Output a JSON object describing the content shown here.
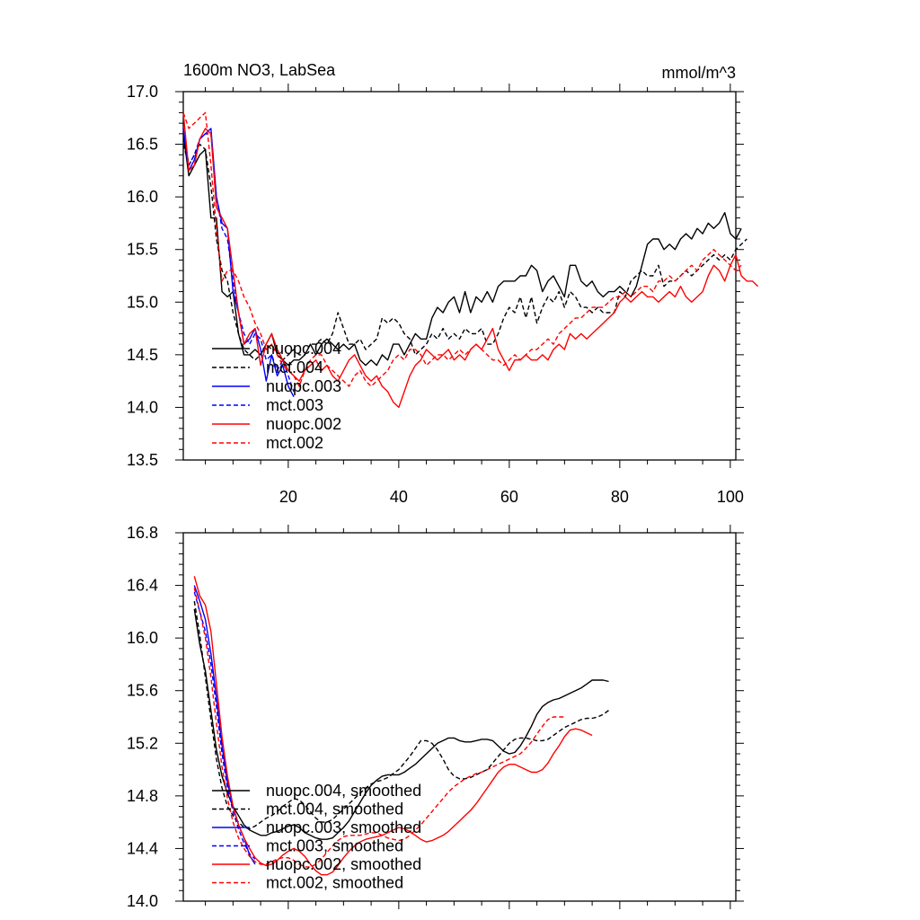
{
  "figure": {
    "title": "1600m NO3, LabSea",
    "units": "mmol/m^3"
  },
  "chart_data": [
    {
      "type": "line",
      "title": "1600m NO3, LabSea",
      "units_label": "mmol/m^3",
      "xlim": [
        1,
        101
      ],
      "ylim": [
        13.5,
        17.0
      ],
      "x_ticks": [
        20,
        40,
        60,
        80,
        100
      ],
      "x_tick_labels": [
        "20",
        "40",
        "60",
        "80",
        "100"
      ],
      "y_ticks": [
        13.5,
        14.0,
        14.5,
        15.0,
        15.5,
        16.0,
        16.5,
        17.0
      ],
      "y_tick_labels": [
        "13.5",
        "14.0",
        "14.5",
        "15.0",
        "15.5",
        "16.0",
        "16.5",
        "17.0"
      ],
      "legend_position": "lower-left",
      "series": [
        {
          "name": "nuopc.004",
          "color": "#000000",
          "dash": "solid",
          "x_start": 1,
          "values": [
            16.6,
            16.2,
            16.3,
            16.4,
            16.45,
            15.8,
            15.8,
            15.1,
            15.05,
            15.1,
            14.7,
            14.5,
            14.5,
            14.55,
            14.5,
            14.6,
            14.7,
            14.5,
            14.45,
            14.4,
            14.45,
            14.45,
            14.5,
            14.6,
            14.5,
            14.6,
            14.65,
            14.6,
            14.55,
            14.6,
            14.55,
            14.6,
            14.45,
            14.4,
            14.45,
            14.4,
            14.5,
            14.45,
            14.6,
            14.6,
            14.5,
            14.6,
            14.7,
            14.65,
            14.65,
            14.85,
            14.95,
            14.9,
            15.0,
            15.05,
            14.9,
            15.1,
            14.9,
            15.05,
            15.0,
            15.1,
            15.0,
            15.15,
            15.2,
            15.2,
            15.2,
            15.25,
            15.25,
            15.35,
            15.3,
            15.1,
            15.2,
            15.25,
            15.15,
            15.05,
            15.35,
            15.35,
            15.2,
            15.15,
            15.2,
            15.1,
            15.05,
            15.1,
            15.1,
            15.15,
            15.1,
            15.05,
            15.15,
            15.35,
            15.55,
            15.6,
            15.6,
            15.5,
            15.55,
            15.5,
            15.6,
            15.65,
            15.6,
            15.7,
            15.65,
            15.75,
            15.7,
            15.75,
            15.85,
            15.65,
            15.6,
            15.7
          ]
        },
        {
          "name": "mct.004",
          "color": "#000000",
          "dash": "dashed",
          "x_start": 1,
          "values": [
            16.5,
            16.3,
            16.4,
            16.5,
            16.45,
            16.1,
            15.6,
            15.3,
            15.2,
            14.9,
            14.7,
            14.55,
            14.5,
            14.45,
            14.5,
            14.6,
            14.55,
            14.55,
            14.45,
            14.5,
            14.55,
            14.5,
            14.5,
            14.6,
            14.6,
            14.65,
            14.6,
            14.7,
            14.9,
            14.75,
            14.6,
            14.6,
            14.65,
            14.55,
            14.6,
            14.65,
            14.85,
            14.8,
            14.85,
            14.8,
            14.7,
            14.65,
            14.5,
            14.55,
            14.6,
            14.7,
            14.65,
            14.75,
            14.65,
            14.7,
            14.65,
            14.75,
            14.7,
            14.7,
            14.75,
            14.6,
            14.6,
            14.7,
            14.85,
            14.95,
            14.9,
            15.05,
            14.85,
            15.05,
            14.8,
            14.95,
            15.05,
            15.0,
            15.1,
            14.95,
            15.1,
            15.05,
            14.95,
            14.95,
            14.9,
            14.95,
            14.9,
            14.9,
            14.9,
            15.1,
            15.05,
            15.2,
            15.25,
            15.3,
            15.25,
            15.25,
            15.35,
            15.15,
            15.2,
            15.2,
            15.25,
            15.3,
            15.25,
            15.3,
            15.35,
            15.4,
            15.45,
            15.4,
            15.45,
            15.4,
            15.5,
            15.55,
            15.6
          ]
        },
        {
          "name": "nuopc.003",
          "color": "#0000ff",
          "dash": "solid",
          "x_start": 1,
          "values": [
            16.65,
            16.25,
            16.35,
            16.55,
            16.6,
            16.65,
            16.0,
            15.75,
            15.7,
            15.1,
            14.9,
            14.6,
            14.65,
            14.75,
            14.55,
            14.25,
            14.5,
            14.3,
            14.4,
            14.2,
            14.1
          ]
        },
        {
          "name": "mct.003",
          "color": "#0000ff",
          "dash": "dashed",
          "x_start": 1,
          "values": [
            16.65,
            16.3,
            16.4,
            16.55,
            16.6,
            16.6,
            16.0,
            15.7,
            15.6,
            15.2,
            14.9,
            14.7,
            14.6,
            14.7,
            14.65,
            14.45,
            14.5,
            14.35,
            14.45,
            14.3,
            14.15
          ]
        },
        {
          "name": "nuopc.002",
          "color": "#ff0000",
          "dash": "solid",
          "x_start": 1,
          "values": [
            16.8,
            16.25,
            16.3,
            16.55,
            16.65,
            16.6,
            15.9,
            15.8,
            15.7,
            15.3,
            14.9,
            14.6,
            14.7,
            14.75,
            14.4,
            14.6,
            14.7,
            14.55,
            14.45,
            14.35,
            14.3,
            14.25,
            14.35,
            14.4,
            14.45,
            14.35,
            14.4,
            14.3,
            14.25,
            14.35,
            14.45,
            14.5,
            14.4,
            14.3,
            14.25,
            14.3,
            14.2,
            14.15,
            14.05,
            14.0,
            14.15,
            14.3,
            14.4,
            14.45,
            14.55,
            14.5,
            14.45,
            14.5,
            14.55,
            14.45,
            14.5,
            14.45,
            14.55,
            14.6,
            14.55,
            14.65,
            14.75,
            14.55,
            14.45,
            14.35,
            14.45,
            14.45,
            14.5,
            14.45,
            14.45,
            14.5,
            14.45,
            14.55,
            14.6,
            14.55,
            14.7,
            14.65,
            14.7,
            14.65,
            14.7,
            14.75,
            14.8,
            14.85,
            14.9,
            15.0,
            15.05,
            15.0,
            15.05,
            15.1,
            15.05,
            15.05,
            15.0,
            15.05,
            15.1,
            15.05,
            15.15,
            15.05,
            15.0,
            15.05,
            15.1,
            15.25,
            15.35,
            15.3,
            15.2,
            15.35,
            15.45,
            15.25,
            15.2,
            15.2,
            15.15
          ]
        },
        {
          "name": "mct.002",
          "color": "#ff0000",
          "dash": "dashed",
          "x_start": 1,
          "values": [
            16.8,
            16.65,
            16.7,
            16.75,
            16.8,
            16.3,
            15.7,
            15.2,
            15.3,
            15.3,
            15.2,
            15.05,
            14.95,
            14.8,
            14.7,
            14.55,
            14.6,
            14.5,
            14.4,
            14.35,
            14.3,
            14.2,
            14.35,
            14.45,
            14.5,
            14.5,
            14.4,
            14.35,
            14.3,
            14.25,
            14.2,
            14.3,
            14.35,
            14.25,
            14.2,
            14.25,
            14.3,
            14.35,
            14.45,
            14.5,
            14.45,
            14.55,
            14.55,
            14.5,
            14.4,
            14.45,
            14.5,
            14.5,
            14.45,
            14.5,
            14.55,
            14.5,
            14.55,
            14.6,
            14.55,
            14.5,
            14.45,
            14.45,
            14.4,
            14.45,
            14.5,
            14.45,
            14.5,
            14.55,
            14.55,
            14.6,
            14.65,
            14.6,
            14.7,
            14.75,
            14.8,
            14.85,
            14.85,
            14.9,
            14.95,
            14.95,
            14.95,
            15.0,
            15.05,
            15.05,
            15.1,
            15.05,
            15.1,
            15.15,
            15.15,
            15.1,
            15.2,
            15.2,
            15.25,
            15.2,
            15.25,
            15.3,
            15.35,
            15.3,
            15.4,
            15.45,
            15.5,
            15.45,
            15.4,
            15.35,
            15.3,
            15.35
          ]
        }
      ]
    },
    {
      "type": "line",
      "xlim": [
        1,
        101
      ],
      "ylim": [
        14.0,
        16.8
      ],
      "x_ticks": [
        20,
        40,
        60,
        80,
        100
      ],
      "y_ticks": [
        14.0,
        14.4,
        14.8,
        15.2,
        15.6,
        16.0,
        16.4,
        16.8
      ],
      "y_tick_labels": [
        "14.0",
        "14.4",
        "14.8",
        "15.2",
        "15.6",
        "16.0",
        "16.4",
        "16.8"
      ],
      "legend_position": "lower-left",
      "series": [
        {
          "name": "nuopc.004, smoothed",
          "color": "#000000",
          "dash": "solid",
          "x_start": 3,
          "values": [
            16.22,
            15.95,
            15.75,
            15.45,
            15.15,
            14.95,
            14.82,
            14.72,
            14.65,
            14.58,
            14.54,
            14.52,
            14.5,
            14.5,
            14.52,
            14.53,
            14.55,
            14.57,
            14.58,
            14.56,
            14.52,
            14.5,
            14.48,
            14.47,
            14.47,
            14.48,
            14.52,
            14.56,
            14.61,
            14.68,
            14.75,
            14.82,
            14.88,
            14.92,
            14.95,
            14.96,
            14.96,
            14.96,
            14.98,
            15.01,
            15.04,
            15.08,
            15.12,
            15.16,
            15.2,
            15.22,
            15.24,
            15.24,
            15.22,
            15.21,
            15.21,
            15.22,
            15.23,
            15.23,
            15.22,
            15.18,
            15.14,
            15.12,
            15.13,
            15.18,
            15.25,
            15.33,
            15.42,
            15.48,
            15.51,
            15.53,
            15.54,
            15.56,
            15.58,
            15.6,
            15.62,
            15.65,
            15.68,
            15.68,
            15.68,
            15.67
          ]
        },
        {
          "name": "mct.004, smoothed",
          "color": "#000000",
          "dash": "dashed",
          "x_start": 3,
          "values": [
            16.28,
            16.02,
            15.7,
            15.38,
            15.08,
            14.86,
            14.72,
            14.65,
            14.6,
            14.56,
            14.55,
            14.57,
            14.6,
            14.63,
            14.65,
            14.68,
            14.72,
            14.75,
            14.78,
            14.77,
            14.73,
            14.68,
            14.63,
            14.6,
            14.6,
            14.62,
            14.66,
            14.7,
            14.74,
            14.78,
            14.82,
            14.86,
            14.89,
            14.91,
            14.92,
            14.94,
            14.97,
            15.0,
            15.05,
            15.1,
            15.16,
            15.22,
            15.22,
            15.2,
            15.15,
            15.08,
            15.0,
            14.95,
            14.93,
            14.93,
            14.94,
            14.96,
            14.98,
            15.0,
            15.05,
            15.1,
            15.15,
            15.2,
            15.23,
            15.24,
            15.24,
            15.23,
            15.22,
            15.22,
            15.23,
            15.26,
            15.29,
            15.32,
            15.34,
            15.36,
            15.38,
            15.39,
            15.39,
            15.4,
            15.42,
            15.45
          ]
        },
        {
          "name": "nuopc.003, smoothed",
          "color": "#0000ff",
          "dash": "solid",
          "x_start": 3,
          "values": [
            16.4,
            16.28,
            16.14,
            15.88,
            15.55,
            15.18,
            14.9,
            14.72,
            14.58,
            14.48,
            14.35,
            14.28
          ]
        },
        {
          "name": "mct.003, smoothed",
          "color": "#0000ff",
          "dash": "dashed",
          "x_start": 3,
          "values": [
            16.35,
            16.2,
            16.05,
            15.8,
            15.48,
            15.12,
            14.86,
            14.68,
            14.55,
            14.44,
            14.36,
            14.32
          ]
        },
        {
          "name": "nuopc.002, smoothed",
          "color": "#ff0000",
          "dash": "solid",
          "x_start": 3,
          "values": [
            16.47,
            16.32,
            16.25,
            16.05,
            15.65,
            15.25,
            14.95,
            14.72,
            14.58,
            14.48,
            14.4,
            14.33,
            14.29,
            14.27,
            14.28,
            14.31,
            14.35,
            14.38,
            14.4,
            14.38,
            14.34,
            14.28,
            14.23,
            14.2,
            14.2,
            14.22,
            14.27,
            14.33,
            14.38,
            14.42,
            14.45,
            14.47,
            14.48,
            14.49,
            14.5,
            14.52,
            14.54,
            14.56,
            14.55,
            14.53,
            14.5,
            14.47,
            14.45,
            14.46,
            14.48,
            14.5,
            14.53,
            14.57,
            14.61,
            14.65,
            14.69,
            14.74,
            14.8,
            14.86,
            14.92,
            14.98,
            15.02,
            15.04,
            15.04,
            15.02,
            15.0,
            14.98,
            14.98,
            15.0,
            15.05,
            15.12,
            15.18,
            15.25,
            15.3,
            15.31,
            15.3,
            15.28,
            15.26
          ]
        },
        {
          "name": "mct.002, smoothed",
          "color": "#ff0000",
          "dash": "dashed",
          "x_start": 3,
          "values": [
            16.38,
            16.2,
            16.0,
            15.7,
            15.35,
            15.02,
            14.78,
            14.6,
            14.48,
            14.4,
            14.34,
            14.3,
            14.28,
            14.28,
            14.3,
            14.32,
            14.33,
            14.33,
            14.31,
            14.28,
            14.26,
            14.26,
            14.28,
            14.32,
            14.37,
            14.42,
            14.46,
            14.49,
            14.5,
            14.5,
            14.5,
            14.51,
            14.52,
            14.52,
            14.5,
            14.48,
            14.47,
            14.46,
            14.47,
            14.5,
            14.54,
            14.58,
            14.63,
            14.68,
            14.73,
            14.78,
            14.83,
            14.87,
            14.9,
            14.93,
            14.95,
            14.97,
            14.98,
            15.0,
            15.02,
            15.04,
            15.06,
            15.08,
            15.1,
            15.12,
            15.16,
            15.21,
            15.27,
            15.33,
            15.38,
            15.4,
            15.4,
            15.4
          ]
        }
      ]
    }
  ]
}
